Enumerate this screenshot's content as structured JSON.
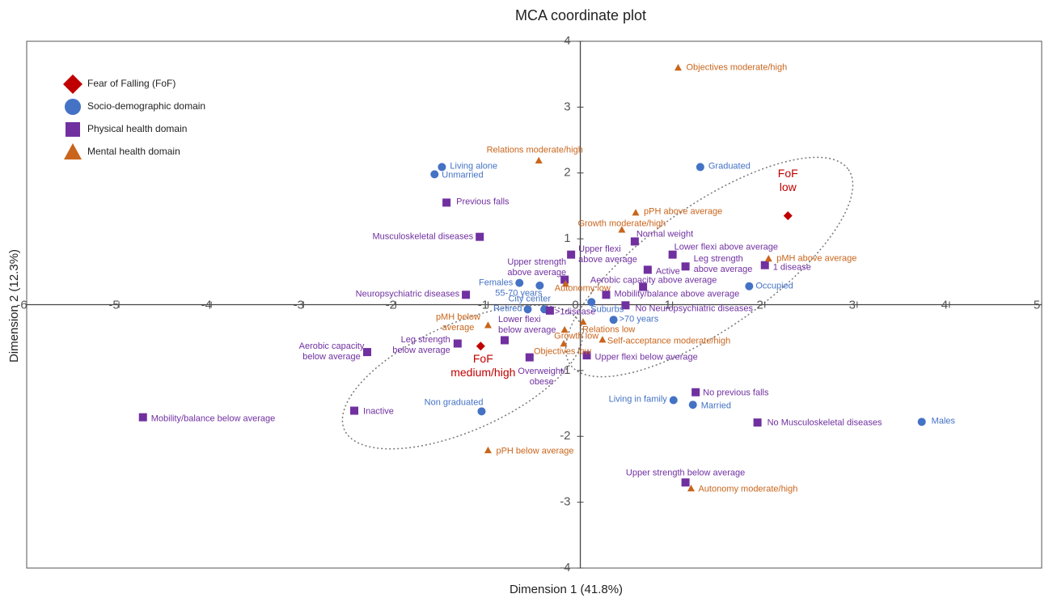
{
  "chart_data": {
    "type": "scatter",
    "title": "MCA coordinate plot",
    "xlabel": "Dimension 1 (41.8%)",
    "ylabel": "Dimension 2 (12.3%)",
    "xlim": [
      -6,
      5
    ],
    "ylim": [
      -4,
      4
    ],
    "xticks": [
      -6,
      -5,
      -4,
      -3,
      -2,
      -1,
      0,
      1,
      2,
      3,
      4,
      5
    ],
    "yticks": [
      -4,
      -3,
      -2,
      -1,
      1,
      2,
      3,
      4
    ],
    "legend": "upper left",
    "series": [
      {
        "name": "Fear of Falling (FoF)",
        "color": "#c00000",
        "marker": "diamond",
        "x": [
          2.25,
          -1.08
        ],
        "values": [
          1.35,
          -0.63
        ],
        "labels": [
          "FoF\nlow",
          "FoF\nmedium/high"
        ]
      },
      {
        "name": "Socio-demographic domain",
        "color": "#4472c4",
        "marker": "circle",
        "x": [
          -1.5,
          -1.58,
          1.3,
          -0.66,
          -0.44,
          -0.57,
          -0.39,
          0.12,
          0.36,
          1.83,
          1.01,
          1.22,
          3.7,
          -1.07
        ],
        "values": [
          2.09,
          1.98,
          2.09,
          0.33,
          0.29,
          -0.07,
          -0.07,
          0.04,
          -0.23,
          0.28,
          -1.45,
          -1.52,
          -1.78,
          -1.62
        ],
        "labels": [
          "Living alone",
          "Unmarried",
          "Graduated",
          "Females",
          "55-70 years",
          "Retired",
          "City center",
          "Suburbs",
          ">70 years",
          "Occupied",
          "Living in family",
          "Married",
          "Males",
          "Non graduated"
        ]
      },
      {
        "name": "Physical health domain",
        "color": "#7030a0",
        "marker": "square",
        "x": [
          -1.45,
          -1.09,
          -0.1,
          0.59,
          1.0,
          1.14,
          0.73,
          2.0,
          -0.17,
          0.68,
          -1.24,
          0.28,
          -0.33,
          0.49,
          -0.82,
          -1.33,
          -2.31,
          -0.55,
          0.07,
          1.25,
          -2.45,
          -4.74,
          1.92,
          1.14
        ],
        "values": [
          1.55,
          1.03,
          0.76,
          0.96,
          0.76,
          0.58,
          0.53,
          0.6,
          0.38,
          0.27,
          0.15,
          0.15,
          -0.09,
          -0.01,
          -0.54,
          -0.59,
          -0.72,
          -0.8,
          -0.77,
          -1.33,
          -1.61,
          -1.71,
          -1.79,
          -2.7
        ],
        "labels": [
          "Previous falls",
          "Musculoskeletal diseases",
          "Upper flexi\nabove average",
          "Normal weight",
          "Lower flexi above average",
          "Leg strength\nabove average",
          "Active",
          "1 disease",
          "Upper strength\nabove average",
          "Aerobic capacity above average",
          "Neuropsychiatric diseases",
          "Mobility/balance above average",
          ">1disease",
          "No Neuropsychiatric diseases",
          "Lower flexi\nbelow average",
          "Leg strength\nbelow average",
          "Aerobic capacity\nbelow average",
          "Overweight/\nobese",
          "Upper flexi below average",
          "No previous falls",
          "Inactive",
          "Mobility/balance below average",
          "No Musculoskeletal diseases",
          "Upper strength below average"
        ]
      },
      {
        "name": "Mental health domain",
        "color": "#c9651c",
        "marker": "triangle",
        "x": [
          1.06,
          -0.45,
          0.6,
          0.45,
          2.04,
          -0.16,
          -1.0,
          0.03,
          -0.17,
          0.24,
          -0.18,
          -1.0,
          1.2
        ],
        "values": [
          3.6,
          2.19,
          1.4,
          1.14,
          0.7,
          0.32,
          -0.31,
          -0.26,
          -0.38,
          -0.53,
          -0.59,
          -2.21,
          -2.79
        ],
        "labels": [
          "Objectives moderate/high",
          "Relations moderate/high",
          "pPH above average",
          "Growth moderate/high",
          "pMH above average",
          "Autonomy low",
          "pMH below\naverage",
          "Relations low",
          "Growth low",
          "Self-acceptance moderate/high",
          "Objectives low",
          "pPH below average",
          "Autonomy moderate/high"
        ]
      }
    ]
  }
}
